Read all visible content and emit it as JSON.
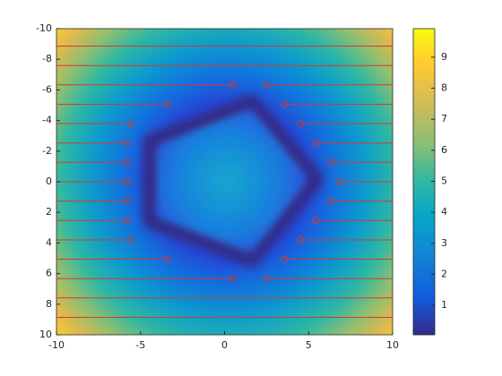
{
  "chart_data": {
    "type": "rays",
    "xlim": [
      -10,
      10
    ],
    "xticks": [
      -10,
      -5,
      0,
      5,
      10
    ],
    "ylim": [
      -10,
      10
    ],
    "yticks": [
      -10,
      -8,
      -6,
      -4,
      -2,
      0,
      2,
      4,
      6,
      8,
      10
    ],
    "y_reversed": true,
    "line_color": "#d33a2c",
    "rays": {
      "y": [
        -8.86,
        -7.59,
        -6.33,
        -5.06,
        -3.8,
        -2.53,
        -1.27,
        0,
        1.27,
        2.53,
        3.8,
        5.06,
        6.33,
        7.59,
        8.86
      ],
      "hit_left": [
        null,
        null,
        0.5,
        -3.39,
        -5.57,
        -5.79,
        -5.79,
        -5.79,
        -5.79,
        -5.79,
        -5.57,
        -3.39,
        0.5,
        null,
        null
      ],
      "hit_right": [
        null,
        null,
        2.48,
        3.55,
        4.51,
        5.41,
        6.32,
        6.8,
        6.32,
        5.41,
        4.51,
        3.55,
        2.48,
        null,
        null
      ]
    },
    "colorbar": {
      "clim": [
        0.05,
        9.92
      ],
      "ticks": [
        1,
        2,
        3,
        4,
        5,
        6,
        7,
        8,
        9
      ]
    }
  }
}
